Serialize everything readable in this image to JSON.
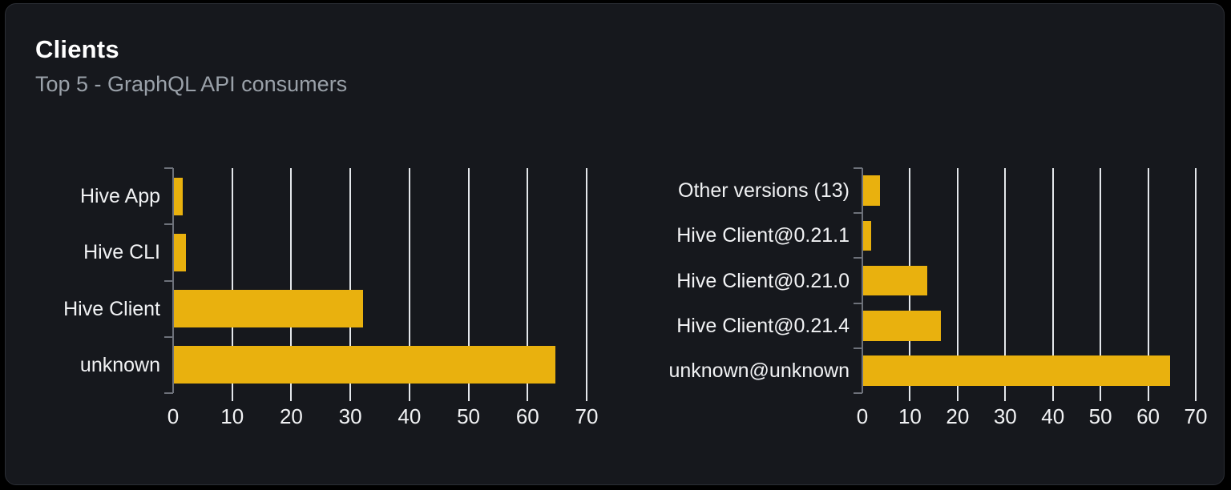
{
  "panel": {
    "title": "Clients",
    "subtitle": "Top 5 - GraphQL API consumers"
  },
  "colors": {
    "background": "#16181d",
    "card_border": "#2b2e35",
    "bar": "#e9b10e",
    "grid": "#e4e7eb",
    "axis": "#6d717a",
    "label_text": "#f1f2f4",
    "subtitle_text": "#9aa1a9",
    "title_text": "#ffffff"
  },
  "chart_data": [
    {
      "type": "bar",
      "orientation": "horizontal",
      "name": "clients-by-name",
      "title": "",
      "categories": [
        "Hive App",
        "Hive CLI",
        "Hive Client",
        "unknown"
      ],
      "values": [
        1.5,
        2,
        32,
        64.5
      ],
      "xlabel": "",
      "ylabel": "",
      "xlim": [
        0,
        70
      ],
      "xticks": [
        0,
        10,
        20,
        30,
        40,
        50,
        60,
        70
      ],
      "grid": true,
      "legend": false
    },
    {
      "type": "bar",
      "orientation": "horizontal",
      "name": "clients-by-version",
      "title": "",
      "categories": [
        "Other versions (13)",
        "Hive Client@0.21.1",
        "Hive Client@0.21.0",
        "Hive Client@0.21.4",
        "unknown@unknown"
      ],
      "values": [
        3.6,
        1.6,
        13.5,
        16.3,
        64.5
      ],
      "xlabel": "",
      "ylabel": "",
      "xlim": [
        0,
        70
      ],
      "xticks": [
        0,
        10,
        20,
        30,
        40,
        50,
        60,
        70
      ],
      "grid": true,
      "legend": false
    }
  ]
}
